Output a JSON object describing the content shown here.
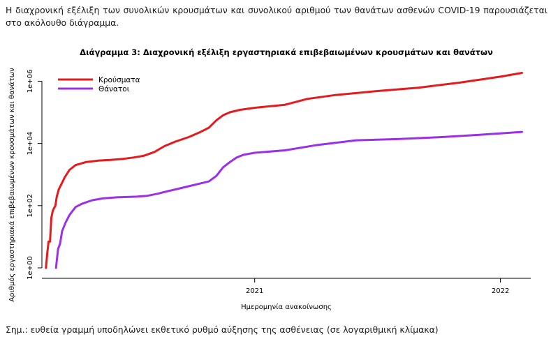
{
  "intro_text": "Η διαχρονική εξέλιξη των συνολικών κρουσμάτων και συνολικού αριθμού των θανάτων ασθενών COVID-19 παρουσιάζεται στο ακόλουθο διάγραμμα.",
  "footnote": "Σημ.: ευθεία γραμμή υποδηλώνει εκθετικό ρυθμό αύξησης της ασθένειας (σε λογαριθμική κλίμακα)",
  "colors": {
    "cases": "#e41a1c",
    "deaths": "#9b30e6",
    "axis": "#000000"
  },
  "chart_data": {
    "type": "line",
    "title": "Διάγραμμα 3: Διαχρονική εξέλιξη εργαστηριακά επιβεβαιωμένων κρουσμάτων και θανάτων",
    "xlabel": "Ημερομηνία ανακοίνωσης",
    "ylabel": "Αριθμός εργαστηριακά επιβεβαιωμένων κρουσμάτων και θανάτων",
    "y_scale": "log10",
    "ylim": [
      1,
      2000000
    ],
    "xlim": [
      "2020-02-20",
      "2022-02-15"
    ],
    "x_ticks": [
      {
        "date": "2021-01-01",
        "label": "2021"
      },
      {
        "date": "2022-01-01",
        "label": "2022"
      }
    ],
    "y_ticks": [
      {
        "value": 1,
        "label": "1e+00"
      },
      {
        "value": 100,
        "label": "1e+02"
      },
      {
        "value": 10000,
        "label": "1e+04"
      },
      {
        "value": 1000000,
        "label": "1e+06"
      }
    ],
    "legend_position": "top-left",
    "series": [
      {
        "name": "Κρούσματα",
        "color": "#e41a1c",
        "points": [
          [
            "2020-02-26",
            1
          ],
          [
            "2020-02-28",
            3
          ],
          [
            "2020-03-01",
            7
          ],
          [
            "2020-03-03",
            7
          ],
          [
            "2020-03-05",
            40
          ],
          [
            "2020-03-07",
            66
          ],
          [
            "2020-03-09",
            84
          ],
          [
            "2020-03-11",
            99
          ],
          [
            "2020-03-13",
            190
          ],
          [
            "2020-03-16",
            331
          ],
          [
            "2020-03-20",
            495
          ],
          [
            "2020-03-25",
            821
          ],
          [
            "2020-04-01",
            1415
          ],
          [
            "2020-04-10",
            2011
          ],
          [
            "2020-04-25",
            2506
          ],
          [
            "2020-05-15",
            2819
          ],
          [
            "2020-06-01",
            2937
          ],
          [
            "2020-06-20",
            3203
          ],
          [
            "2020-07-05",
            3519
          ],
          [
            "2020-07-20",
            4000
          ],
          [
            "2020-08-05",
            5300
          ],
          [
            "2020-08-20",
            8200
          ],
          [
            "2020-09-05",
            11400
          ],
          [
            "2020-09-25",
            16000
          ],
          [
            "2020-10-10",
            22000
          ],
          [
            "2020-10-25",
            32000
          ],
          [
            "2020-11-05",
            55000
          ],
          [
            "2020-11-15",
            80000
          ],
          [
            "2020-11-25",
            100000
          ],
          [
            "2020-12-10",
            120000
          ],
          [
            "2021-01-01",
            140000
          ],
          [
            "2021-02-15",
            175000
          ],
          [
            "2021-03-20",
            270000
          ],
          [
            "2021-05-01",
            360000
          ],
          [
            "2021-07-01",
            480000
          ],
          [
            "2021-09-01",
            620000
          ],
          [
            "2021-11-01",
            900000
          ],
          [
            "2022-01-01",
            1400000
          ],
          [
            "2022-02-02",
            1850000
          ]
        ]
      },
      {
        "name": "Θάνατοι",
        "color": "#9b30e6",
        "points": [
          [
            "2020-03-12",
            1
          ],
          [
            "2020-03-15",
            4
          ],
          [
            "2020-03-18",
            6
          ],
          [
            "2020-03-21",
            15
          ],
          [
            "2020-03-26",
            28
          ],
          [
            "2020-04-01",
            50
          ],
          [
            "2020-04-10",
            90
          ],
          [
            "2020-04-20",
            116
          ],
          [
            "2020-05-05",
            150
          ],
          [
            "2020-05-20",
            170
          ],
          [
            "2020-06-10",
            185
          ],
          [
            "2020-07-10",
            195
          ],
          [
            "2020-07-25",
            206
          ],
          [
            "2020-08-10",
            242
          ],
          [
            "2020-08-25",
            292
          ],
          [
            "2020-09-10",
            350
          ],
          [
            "2020-09-25",
            420
          ],
          [
            "2020-10-10",
            500
          ],
          [
            "2020-10-25",
            600
          ],
          [
            "2020-11-05",
            900
          ],
          [
            "2020-11-15",
            1700
          ],
          [
            "2020-11-25",
            2500
          ],
          [
            "2020-12-05",
            3500
          ],
          [
            "2020-12-15",
            4300
          ],
          [
            "2021-01-01",
            5000
          ],
          [
            "2021-02-15",
            6000
          ],
          [
            "2021-04-01",
            8700
          ],
          [
            "2021-06-01",
            12600
          ],
          [
            "2021-08-01",
            13800
          ],
          [
            "2021-10-01",
            15800
          ],
          [
            "2021-12-01",
            19000
          ],
          [
            "2022-02-02",
            23500
          ]
        ]
      }
    ]
  }
}
